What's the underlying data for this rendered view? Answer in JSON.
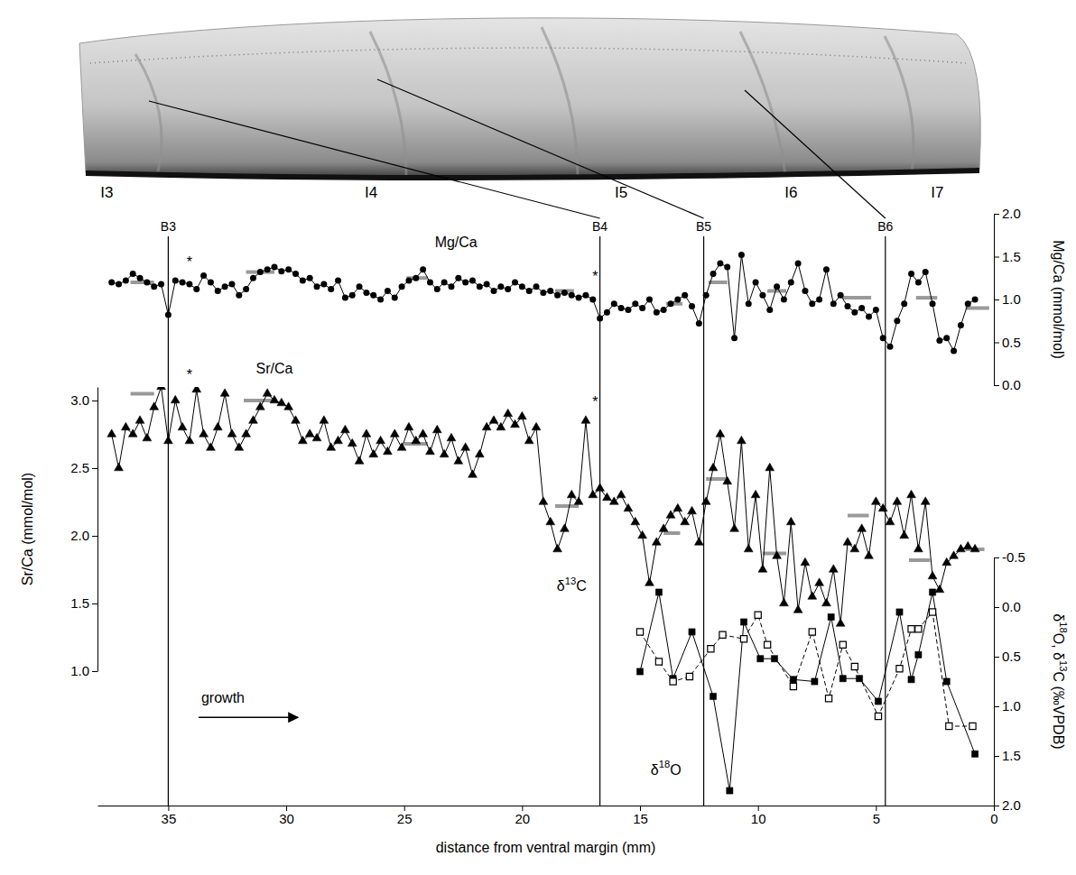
{
  "chart_data": [
    {
      "type": "line",
      "ylabel": "Mg/Ca (mmol/mol)",
      "xlim": [
        38,
        0
      ],
      "ylim": [
        0,
        2
      ],
      "yticks": [
        {
          "value": 0,
          "label": "0.0"
        },
        {
          "value": 0.5,
          "label": "0.5"
        },
        {
          "value": 1,
          "label": "1.0"
        },
        {
          "value": 1.5,
          "label": "1.5"
        },
        {
          "value": 2,
          "label": "2.0"
        }
      ],
      "series": [
        {
          "color": "#000000",
          "marker": "circle",
          "line_style": "solid",
          "x": [
            37.4,
            37.1,
            36.8,
            36.5,
            36.2,
            35.9,
            35.6,
            35.3,
            35.0,
            34.7,
            34.4,
            34.1,
            33.8,
            33.5,
            33.2,
            32.9,
            32.6,
            32.3,
            32.0,
            31.7,
            31.4,
            31.1,
            30.8,
            30.5,
            30.2,
            29.9,
            29.6,
            29.3,
            29.0,
            28.7,
            28.4,
            28.1,
            27.8,
            27.5,
            27.2,
            26.9,
            26.6,
            26.3,
            26.0,
            25.7,
            25.4,
            25.1,
            24.8,
            24.5,
            24.2,
            23.9,
            23.6,
            23.3,
            23.0,
            22.7,
            22.4,
            22.1,
            21.8,
            21.5,
            21.2,
            20.9,
            20.6,
            20.3,
            20.0,
            19.7,
            19.4,
            19.1,
            18.8,
            18.5,
            18.2,
            17.9,
            17.6,
            17.3,
            17.0,
            16.7,
            16.4,
            16.1,
            15.8,
            15.5,
            15.2,
            14.9,
            14.6,
            14.3,
            14.0,
            13.7,
            13.4,
            13.1,
            12.8,
            12.5,
            12.2,
            11.9,
            11.6,
            11.3,
            11.0,
            10.7,
            10.4,
            10.1,
            9.8,
            9.5,
            9.2,
            8.9,
            8.6,
            8.3,
            8.0,
            7.7,
            7.4,
            7.1,
            6.8,
            6.5,
            6.2,
            5.9,
            5.6,
            5.3,
            5.0,
            4.7,
            4.4,
            4.1,
            3.8,
            3.5,
            3.2,
            2.9,
            2.6,
            2.3,
            2.0,
            1.7,
            1.4,
            1.1,
            0.8
          ],
          "values": [
            1.2,
            1.18,
            1.22,
            1.3,
            1.25,
            1.2,
            1.15,
            1.18,
            0.82,
            1.22,
            1.2,
            1.18,
            1.12,
            1.28,
            1.2,
            1.1,
            1.15,
            1.18,
            1.05,
            1.12,
            1.25,
            1.32,
            1.35,
            1.38,
            1.33,
            1.35,
            1.3,
            1.22,
            1.25,
            1.15,
            1.18,
            1.12,
            1.22,
            1.02,
            1.05,
            1.15,
            1.08,
            1.05,
            1.0,
            1.1,
            1.02,
            1.15,
            1.22,
            1.25,
            1.35,
            1.2,
            1.12,
            1.2,
            1.15,
            1.25,
            1.2,
            1.22,
            1.15,
            1.18,
            1.1,
            1.15,
            1.12,
            1.2,
            1.15,
            1.1,
            1.15,
            1.08,
            1.1,
            1.05,
            1.08,
            1.05,
            1.02,
            1.05,
            1.0,
            0.78,
            0.85,
            0.95,
            0.9,
            0.88,
            0.95,
            0.9,
            1.0,
            0.85,
            0.88,
            0.95,
            1.0,
            1.05,
            0.92,
            0.72,
            1.05,
            1.3,
            1.42,
            1.38,
            0.55,
            1.52,
            0.95,
            1.2,
            1.05,
            0.88,
            1.15,
            1.0,
            1.2,
            1.42,
            1.1,
            0.95,
            1.0,
            1.35,
            0.95,
            1.05,
            0.92,
            0.85,
            0.9,
            0.8,
            0.88,
            0.55,
            0.45,
            0.75,
            0.95,
            1.3,
            1.2,
            1.32,
            0.95,
            0.52,
            0.55,
            0.4,
            0.7,
            0.95,
            1.0
          ]
        },
        {
          "type": "segment",
          "color": "#999999",
          "x": [
            [
              36.6,
              35.6
            ],
            [
              31.7,
              30.5
            ],
            [
              24.9,
              24.0
            ],
            [
              18.6,
              17.8
            ],
            [
              13.9,
              13.2
            ],
            [
              12.1,
              11.3
            ],
            [
              9.6,
              8.8
            ],
            [
              6.4,
              5.2
            ],
            [
              3.3,
              2.4
            ],
            [
              1.2,
              0.2
            ]
          ],
          "values": [
            1.2,
            1.32,
            1.25,
            1.1,
            0.95,
            1.2,
            1.1,
            1.02,
            1.02,
            0.9
          ]
        }
      ],
      "annotations": [
        {
          "text": "Mg/Ca",
          "x": 22.8,
          "y": 1.65
        },
        {
          "text": "*",
          "x": 34.1,
          "y": 1.42
        },
        {
          "text": "*",
          "x": 16.9,
          "y": 1.25
        }
      ]
    },
    {
      "type": "line",
      "ylabel": "Sr/Ca (mmol/mol)",
      "xlim": [
        38,
        0
      ],
      "ylim": [
        1.0,
        3.1
      ],
      "yticks": [
        {
          "value": 1,
          "label": "1.0"
        },
        {
          "value": 1.5,
          "label": "1.5"
        },
        {
          "value": 2,
          "label": "2.0"
        },
        {
          "value": 2.5,
          "label": "2.5"
        },
        {
          "value": 3,
          "label": "3.0"
        }
      ],
      "series": [
        {
          "color": "#000000",
          "marker": "triangle",
          "line_style": "solid",
          "x": [
            37.4,
            37.1,
            36.8,
            36.5,
            36.2,
            35.9,
            35.6,
            35.3,
            35.0,
            34.7,
            34.4,
            34.1,
            33.8,
            33.5,
            33.2,
            32.9,
            32.6,
            32.3,
            32.0,
            31.7,
            31.4,
            31.1,
            30.8,
            30.5,
            30.2,
            29.9,
            29.6,
            29.3,
            29.0,
            28.7,
            28.4,
            28.1,
            27.8,
            27.5,
            27.2,
            26.9,
            26.6,
            26.3,
            26.0,
            25.7,
            25.4,
            25.1,
            24.8,
            24.5,
            24.2,
            23.9,
            23.6,
            23.3,
            23.0,
            22.7,
            22.4,
            22.1,
            21.8,
            21.5,
            21.2,
            20.9,
            20.6,
            20.3,
            20.0,
            19.7,
            19.4,
            19.1,
            18.8,
            18.5,
            18.2,
            17.9,
            17.6,
            17.3,
            17.0,
            16.7,
            16.4,
            16.1,
            15.8,
            15.5,
            15.2,
            14.9,
            14.6,
            14.3,
            14.0,
            13.7,
            13.4,
            13.1,
            12.8,
            12.5,
            12.2,
            11.9,
            11.6,
            11.3,
            11.0,
            10.7,
            10.4,
            10.1,
            9.8,
            9.5,
            9.2,
            8.9,
            8.6,
            8.3,
            8.0,
            7.7,
            7.4,
            7.1,
            6.8,
            6.5,
            6.2,
            5.9,
            5.6,
            5.3,
            5.0,
            4.7,
            4.4,
            4.1,
            3.8,
            3.5,
            3.2,
            2.9,
            2.6,
            2.3,
            2.0,
            1.7,
            1.4,
            1.1,
            0.8
          ],
          "values": [
            2.75,
            2.5,
            2.8,
            2.75,
            2.85,
            2.72,
            2.95,
            3.1,
            2.7,
            3.0,
            2.8,
            2.7,
            3.08,
            2.75,
            2.65,
            2.8,
            3.05,
            2.75,
            2.65,
            2.75,
            2.85,
            2.95,
            3.05,
            3.0,
            2.98,
            2.95,
            2.85,
            2.7,
            2.75,
            2.72,
            2.85,
            2.65,
            2.7,
            2.78,
            2.68,
            2.55,
            2.75,
            2.6,
            2.7,
            2.62,
            2.75,
            2.65,
            2.8,
            2.7,
            2.75,
            2.62,
            2.78,
            2.6,
            2.72,
            2.55,
            2.65,
            2.45,
            2.6,
            2.8,
            2.85,
            2.8,
            2.9,
            2.82,
            2.88,
            2.7,
            2.8,
            2.25,
            2.1,
            1.9,
            2.05,
            2.3,
            2.25,
            2.85,
            2.3,
            2.35,
            2.28,
            2.25,
            2.3,
            2.2,
            2.1,
            2.0,
            1.65,
            1.95,
            2.05,
            2.15,
            2.2,
            2.1,
            2.18,
            1.95,
            2.25,
            2.5,
            2.75,
            2.4,
            2.05,
            2.7,
            1.9,
            2.3,
            1.75,
            2.5,
            1.85,
            1.5,
            2.1,
            1.45,
            1.8,
            1.55,
            1.65,
            1.5,
            1.75,
            1.35,
            1.95,
            1.9,
            2.05,
            1.85,
            2.25,
            2.2,
            2.1,
            2.25,
            2.0,
            2.3,
            1.9,
            2.25,
            1.7,
            1.6,
            1.8,
            1.85,
            1.9,
            1.92,
            1.9
          ]
        },
        {
          "type": "segment",
          "color": "#999999",
          "x": [
            [
              36.6,
              35.6
            ],
            [
              31.8,
              30.6
            ],
            [
              25.0,
              24.0
            ],
            [
              18.6,
              17.6
            ],
            [
              14.0,
              13.3
            ],
            [
              12.2,
              11.3
            ],
            [
              9.8,
              8.8
            ],
            [
              6.2,
              5.3
            ],
            [
              3.6,
              2.7
            ],
            [
              1.2,
              0.4
            ]
          ],
          "values": [
            3.05,
            3.0,
            2.68,
            2.22,
            2.02,
            2.42,
            1.87,
            2.15,
            1.82,
            1.9
          ]
        }
      ],
      "annotations": [
        {
          "text": "Sr/Ca",
          "x": 30.5,
          "y": 3.23
        },
        {
          "text": "*",
          "x": 34.1,
          "y": 3.18
        },
        {
          "text": "*",
          "x": 16.9,
          "y": 2.98
        }
      ]
    },
    {
      "type": "line",
      "xlabel": "distance from ventral margin (mm)",
      "ylabel": "δ18O, δ13C (‰VPDB)",
      "xlim": [
        38,
        0
      ],
      "xticks": [
        35,
        30,
        25,
        20,
        15,
        10,
        5,
        0
      ],
      "ylim": [
        2.0,
        -0.5
      ],
      "yticks": [
        -0.5,
        {
          "value": 0,
          "label": "0.0"
        },
        0.5,
        {
          "value": 1,
          "label": "1.0"
        },
        1.5,
        {
          "value": 2,
          "label": "2.0"
        }
      ],
      "series": [
        {
          "color": "#000000",
          "marker": "square",
          "line_style": "solid",
          "x": [
            15.0,
            14.2,
            13.6,
            12.8,
            11.9,
            11.2,
            10.6,
            9.9,
            9.3,
            8.5,
            7.6,
            6.9,
            6.4,
            5.7,
            4.9,
            4.0,
            3.5,
            3.2,
            2.6,
            2.0,
            0.8
          ],
          "values": [
            0.65,
            -0.15,
            0.72,
            0.25,
            0.9,
            1.85,
            0.15,
            0.52,
            0.52,
            0.73,
            0.75,
            0.1,
            0.72,
            0.72,
            0.95,
            0.05,
            0.73,
            0.48,
            -0.15,
            0.75,
            1.48
          ]
        },
        {
          "color": "#000000",
          "marker": "square-open",
          "line_style": "dashed",
          "x": [
            15.0,
            14.2,
            13.6,
            12.9,
            12.0,
            11.5,
            10.6,
            10.0,
            9.6,
            8.5,
            7.7,
            7.0,
            6.4,
            5.9,
            4.9,
            4.0,
            3.5,
            3.2,
            2.6,
            1.9,
            0.9
          ],
          "values": [
            0.25,
            0.55,
            0.75,
            0.7,
            0.42,
            0.28,
            0.32,
            0.08,
            0.38,
            0.8,
            0.25,
            0.92,
            0.38,
            0.6,
            1.1,
            0.62,
            0.22,
            0.22,
            0.05,
            1.2,
            1.2
          ]
        }
      ],
      "annotations": [
        {
          "text": "δ13C",
          "x": 17.9,
          "y": -0.2
        },
        {
          "text": "δ18O",
          "x": 13.9,
          "y": 1.65
        },
        {
          "text": "growth",
          "x": 33.6,
          "y": 0.93,
          "marker": "arrow"
        }
      ],
      "boundaries": [
        {
          "label": "B3",
          "x": 35.0
        },
        {
          "label": "B4",
          "x": 16.7
        },
        {
          "label": "B5",
          "x": 12.3
        },
        {
          "label": "B6",
          "x": 4.6
        }
      ],
      "intervals": [
        {
          "label": "I3",
          "x": 37.6
        },
        {
          "label": "I4",
          "x": 26.4
        },
        {
          "label": "I5",
          "x": 15.8
        },
        {
          "label": "I6",
          "x": 8.6
        },
        {
          "label": "I7",
          "x": 2.4
        }
      ]
    }
  ]
}
